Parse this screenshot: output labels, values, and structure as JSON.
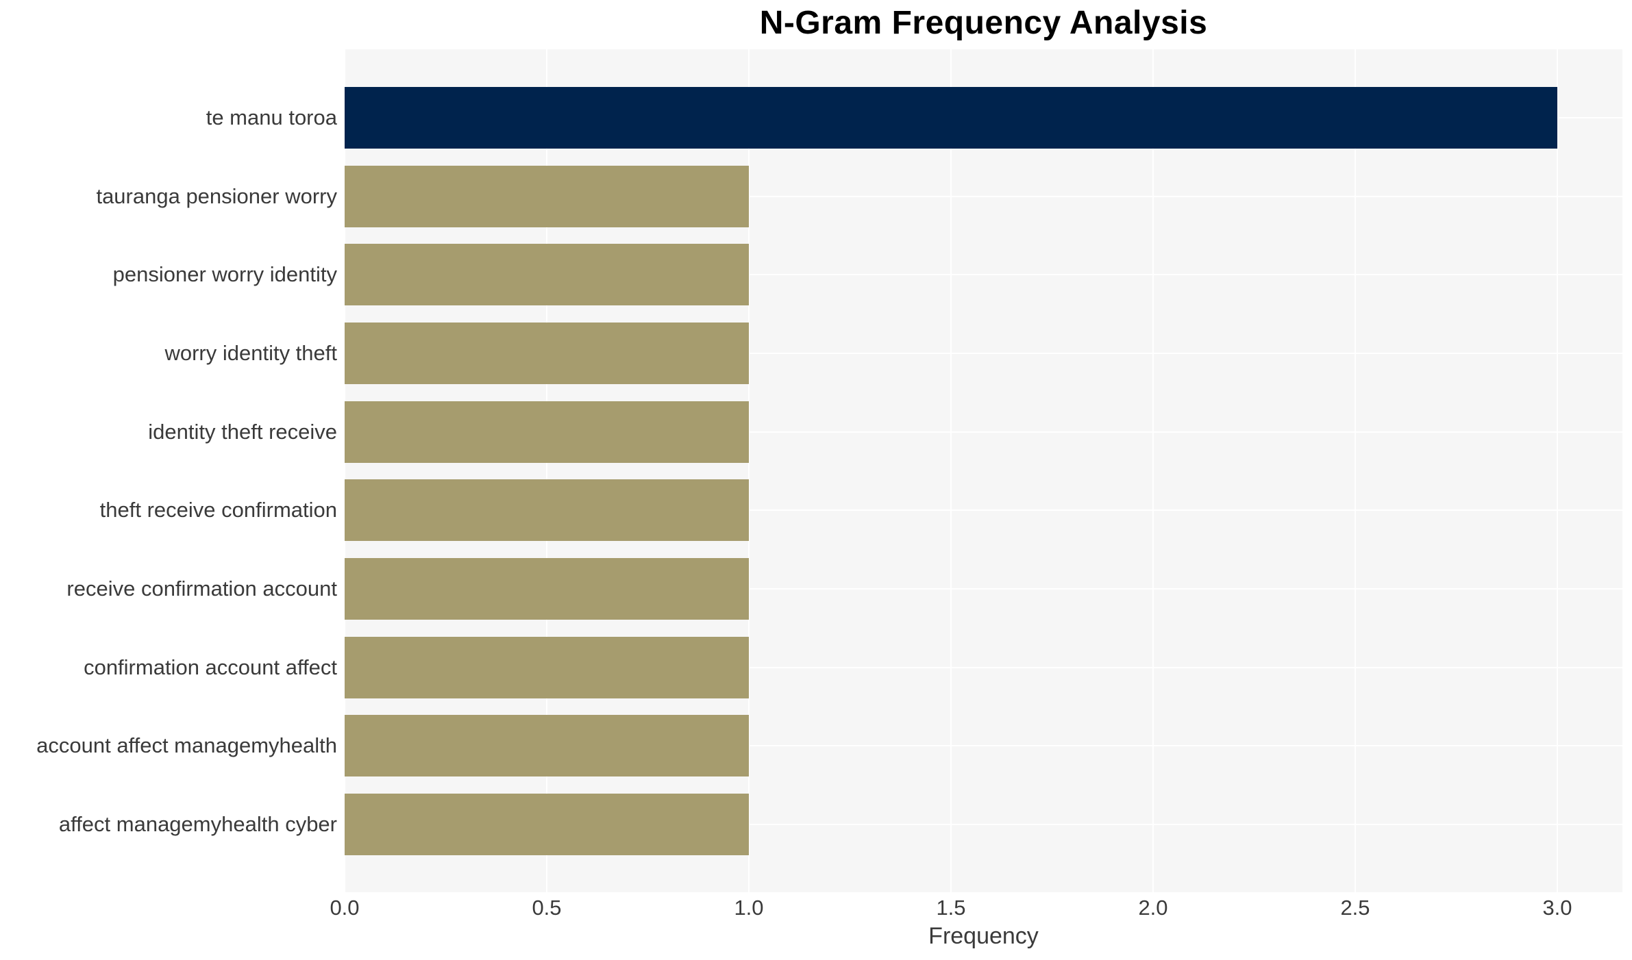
{
  "chart_data": {
    "type": "bar",
    "orientation": "horizontal",
    "title": "N-Gram Frequency Analysis",
    "xlabel": "Frequency",
    "ylabel": "",
    "categories": [
      "te manu toroa",
      "tauranga pensioner worry",
      "pensioner worry identity",
      "worry identity theft",
      "identity theft receive",
      "theft receive confirmation",
      "receive confirmation account",
      "confirmation account affect",
      "account affect managemyhealth",
      "affect managemyhealth cyber"
    ],
    "values": [
      3,
      1,
      1,
      1,
      1,
      1,
      1,
      1,
      1,
      1
    ],
    "bar_colors": [
      "#00234d",
      "#a69c6e",
      "#a69c6e",
      "#a69c6e",
      "#a69c6e",
      "#a69c6e",
      "#a69c6e",
      "#a69c6e",
      "#a69c6e",
      "#a69c6e"
    ],
    "xticks": [
      0.0,
      0.5,
      1.0,
      1.5,
      2.0,
      2.5,
      3.0
    ],
    "xtick_labels": [
      "0.0",
      "0.5",
      "1.0",
      "1.5",
      "2.0",
      "2.5",
      "3.0"
    ],
    "xlim": [
      0,
      3.16
    ],
    "grid": true,
    "legend": false
  },
  "colors": {
    "plot_background": "#f6f6f6",
    "grid": "#ffffff",
    "highlight_bar": "#00234d",
    "default_bar": "#a69c6e",
    "title_text": "#000000",
    "axis_text": "#3a3a3a"
  }
}
